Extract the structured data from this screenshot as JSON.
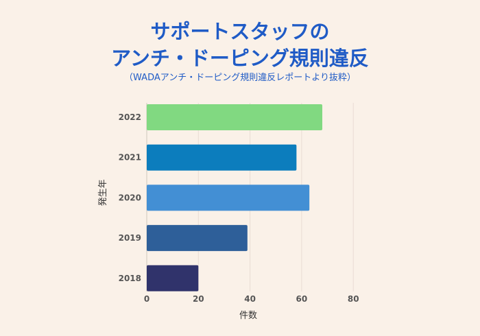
{
  "chart_data": {
    "type": "bar",
    "orientation": "horizontal",
    "title_lines": [
      "サポートスタッフの",
      "アンチ・ドーピング規則違反"
    ],
    "subtitle": "（WADAアンチ・ドーピング規則違反レポートより抜粋）",
    "xlabel": "件数",
    "ylabel": "発生年",
    "categories": [
      "2022",
      "2021",
      "2020",
      "2019",
      "2018"
    ],
    "values": [
      68,
      58,
      63,
      39,
      20
    ],
    "colors": [
      "#81d981",
      "#0c7dbd",
      "#438fd4",
      "#2e5f99",
      "#30336b"
    ],
    "xlim": [
      0,
      84
    ],
    "xticks": [
      0,
      20,
      40,
      60,
      80
    ],
    "grid": true,
    "background": "#faf1e8"
  }
}
